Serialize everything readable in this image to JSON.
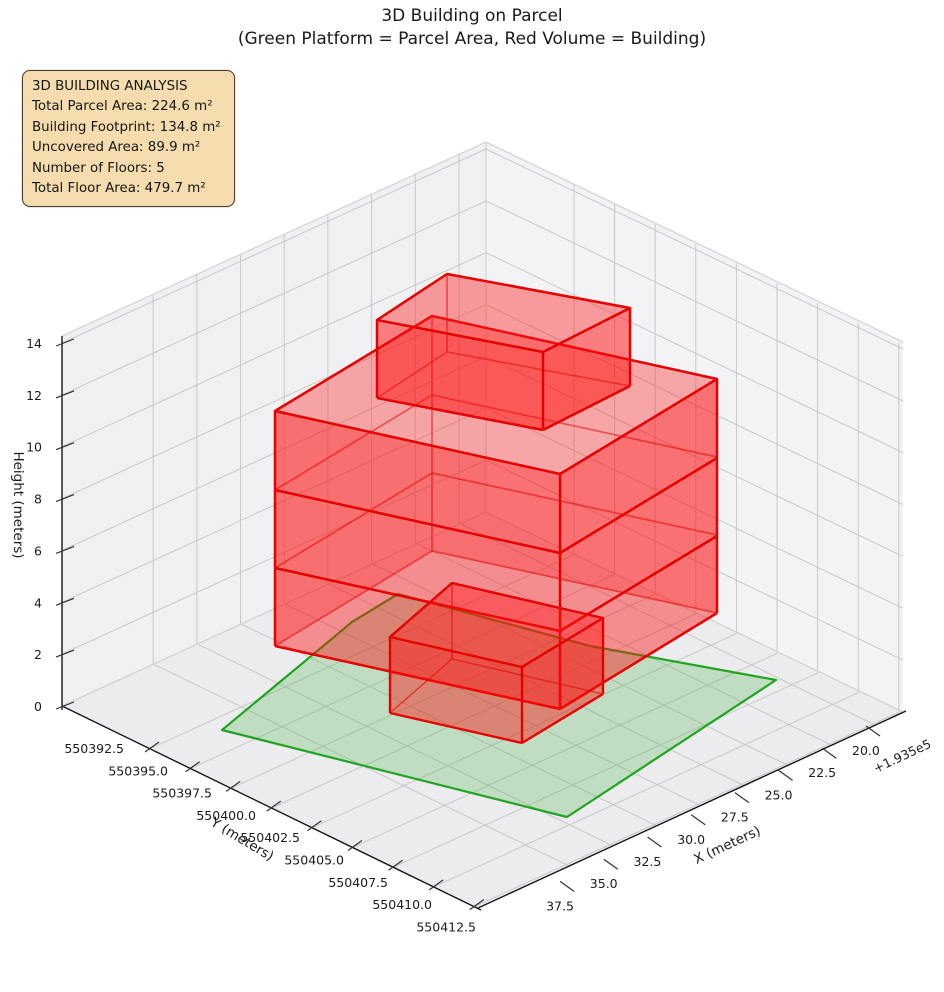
{
  "figure": {
    "title": "3D Building on Parcel",
    "subtitle": "(Green Platform = Parcel Area, Red Volume = Building)"
  },
  "info_box": {
    "heading": "3D BUILDING ANALYSIS",
    "lines": [
      "Total Parcel Area: 224.6 m²",
      "Building Footprint: 134.8 m²",
      "Uncovered Area: 89.9 m²",
      "Number of Floors: 5",
      "Total Floor Area: 479.7 m²"
    ]
  },
  "axes": {
    "x": {
      "label": "X (meters)",
      "offset_text": "+1.935e5",
      "ticks": [
        "20.0",
        "22.5",
        "25.0",
        "27.5",
        "30.0",
        "32.5",
        "35.0",
        "37.5"
      ]
    },
    "y": {
      "label": "Y (meters)",
      "ticks": [
        "550392.5",
        "550395.0",
        "550397.5",
        "550400.0",
        "550402.5",
        "550405.0",
        "550407.5",
        "550410.0",
        "550412.5"
      ]
    },
    "z": {
      "label": "Height (meters)",
      "ticks": [
        "0",
        "2",
        "4",
        "6",
        "8",
        "10",
        "12",
        "14"
      ]
    }
  },
  "colors": {
    "parcel_edge": "#1fa51f",
    "parcel_fill": "rgba(60,175,60,0.25)",
    "building_edge": "#e60000",
    "building_face": "rgba(255,10,10,0.42)",
    "info_bg": "#f5dcae",
    "pane": "#f1f1f3",
    "grid": "#c8c8c8"
  },
  "chart_data": {
    "type": "3d-building-plot",
    "title": "3D Building on Parcel",
    "subtitle": "(Green Platform = Parcel Area, Red Volume = Building)",
    "xlabel": "X (meters)",
    "ylabel": "Y (meters)",
    "zlabel": "Height (meters)",
    "x_ticks": [
      20.0,
      22.5,
      25.0,
      27.5,
      30.0,
      32.5,
      35.0,
      37.5
    ],
    "x_offset": "+1.935e5",
    "y_ticks": [
      550392.5,
      550395.0,
      550397.5,
      550400.0,
      550402.5,
      550405.0,
      550407.5,
      550410.0,
      550412.5
    ],
    "z_ticks": [
      0,
      2,
      4,
      6,
      8,
      10,
      12,
      14
    ],
    "z_range": [
      0,
      15
    ],
    "grid": true,
    "legend": {
      "green_platform": "Parcel Area",
      "red_volume": "Building"
    },
    "series": [
      {
        "name": "Parcel platform",
        "color": "green",
        "z": 0,
        "shape": "irregular quadrilateral parcel outline"
      },
      {
        "name": "Building volume",
        "color": "red",
        "floors": 5,
        "floor_height_m": 3
      }
    ],
    "analysis": {
      "total_parcel_area_m2": 224.6,
      "building_footprint_m2": 134.8,
      "uncovered_area_m2": 89.9,
      "number_of_floors": 5,
      "total_floor_area_m2": 479.7
    }
  }
}
